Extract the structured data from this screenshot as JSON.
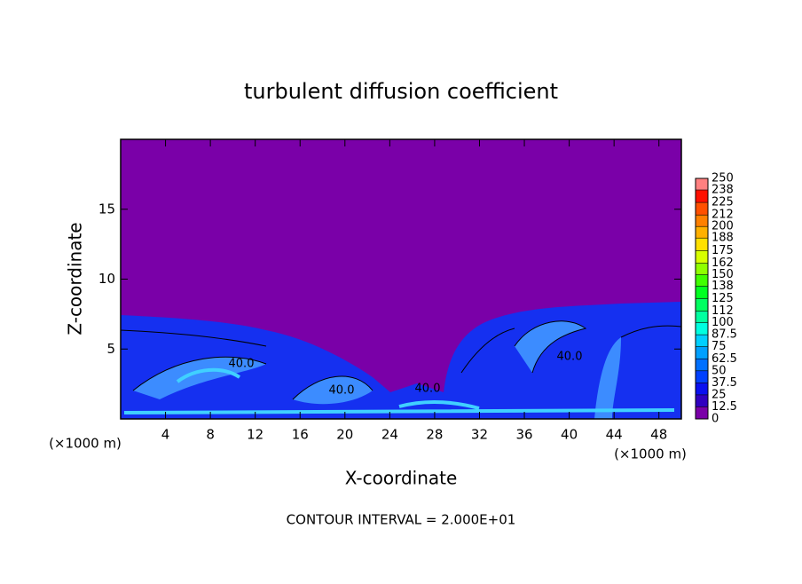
{
  "chart_data": {
    "type": "contour",
    "title": "turbulent diffusion coefficient",
    "x_label": "X-coordinate",
    "y_label": "Z-coordinate",
    "x_unit": "(×1000 m)",
    "footer": "CONTOUR INTERVAL = 2.000E+01",
    "contour_labels": [
      "40.0",
      "40.0",
      "40.0",
      "40.0"
    ],
    "xlim": [
      0,
      50
    ],
    "xticks": [
      4,
      8,
      12,
      16,
      20,
      24,
      28,
      32,
      36,
      40,
      44,
      48
    ],
    "ylim": [
      0,
      20
    ],
    "yticks": [
      5,
      10,
      15
    ],
    "clim": [
      0,
      250
    ],
    "colorbar_ticks": [
      0,
      12.5,
      25,
      37.5,
      50,
      62.5,
      75,
      87.5,
      100,
      112,
      125,
      138,
      150,
      162,
      175,
      188,
      200,
      212,
      225,
      238,
      250
    ],
    "colors": [
      "#7a00a8",
      "#3000c0",
      "#0a10f0",
      "#0040ff",
      "#0070ff",
      "#00a0ff",
      "#00d0ff",
      "#00ffe0",
      "#00ffa0",
      "#00ff60",
      "#00ff20",
      "#40ff00",
      "#90ff00",
      "#d8ff00",
      "#ffe000",
      "#ffb000",
      "#ff8000",
      "#ff5000",
      "#ff1000",
      "#ff8080"
    ]
  }
}
